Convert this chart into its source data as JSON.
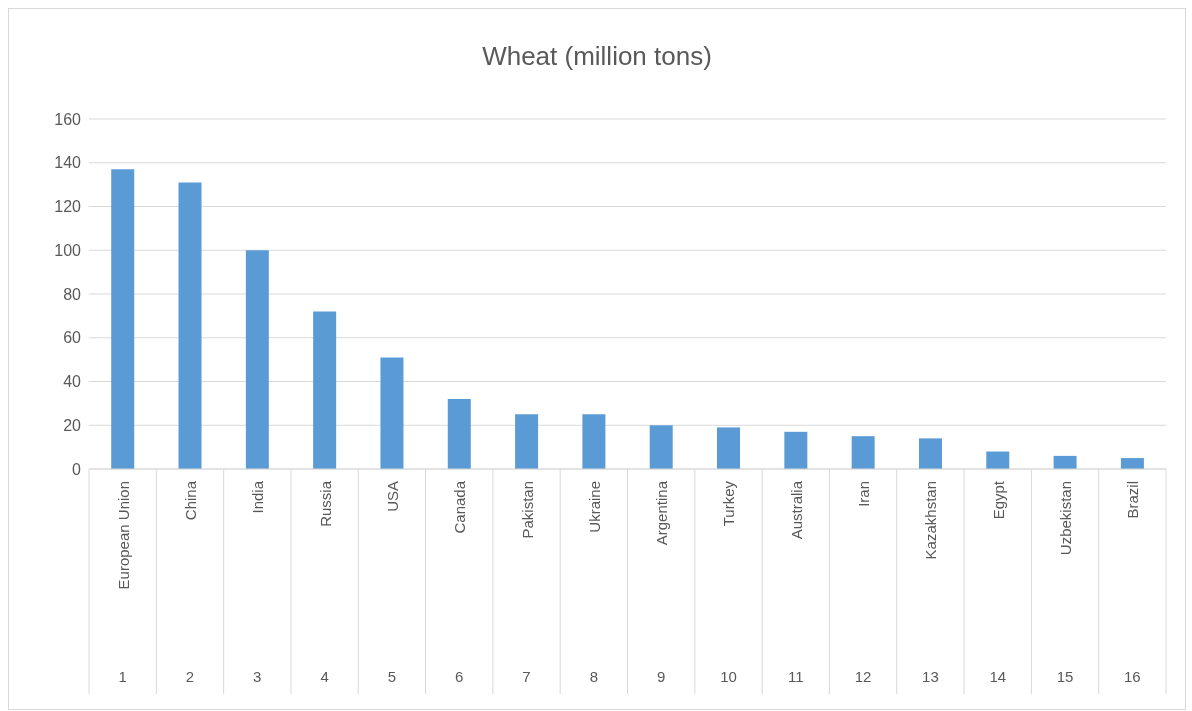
{
  "chart_data": {
    "type": "bar",
    "title": "Wheat (million tons)",
    "categories": [
      "European Union",
      "China",
      "India",
      "Russia",
      "USA",
      "Canada",
      "Pakistan",
      "Ukraine",
      "Argentina",
      "Turkey",
      "Australia",
      "Iran",
      "Kazakhstan",
      "Egypt",
      "Uzbekistan",
      "Brazil"
    ],
    "values": [
      137,
      131,
      100,
      72,
      51,
      32,
      25,
      25,
      20,
      19,
      17,
      15,
      14,
      8,
      6,
      5
    ],
    "color": "#5b9bd5",
    "annotations": [
      "1",
      "2",
      "3",
      "4",
      "5",
      "6",
      "7",
      "8",
      "9",
      "10",
      "11",
      "12",
      "13",
      "14",
      "15",
      "16"
    ],
    "ylim": [
      0,
      160
    ],
    "yticks": [
      0,
      20,
      40,
      60,
      80,
      100,
      120,
      140,
      160
    ],
    "grid": "y",
    "legend": false
  }
}
